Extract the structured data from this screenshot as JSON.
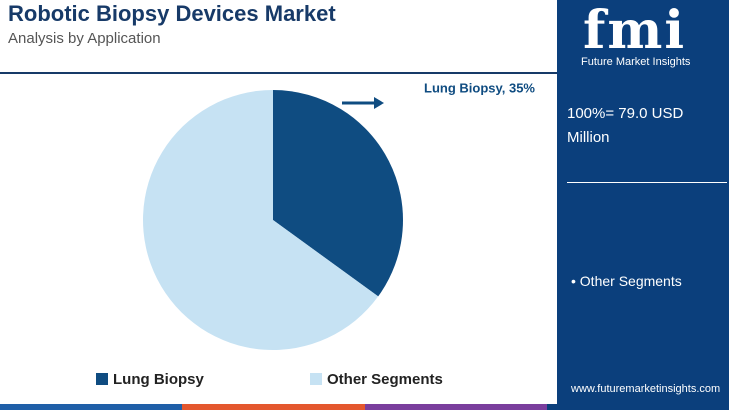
{
  "chart_data": {
    "type": "pie",
    "title": "Robotic Biopsy Devices Market",
    "subtitle": "Analysis by Application",
    "categories": [
      "Lung Biopsy",
      "Other Segments"
    ],
    "values": [
      35,
      65
    ],
    "value_labels": [
      "Lung Biopsy, 35%",
      null
    ],
    "colors": [
      "#0f4c81",
      "#c6e2f3"
    ],
    "legend": "bottom"
  },
  "panel": {
    "brand": "fmi",
    "tagline": "Future Market Insights",
    "total": "100%= 79.0 USD Million",
    "note": "• Other Segments",
    "url": "www.futuremarketinsights.com"
  }
}
